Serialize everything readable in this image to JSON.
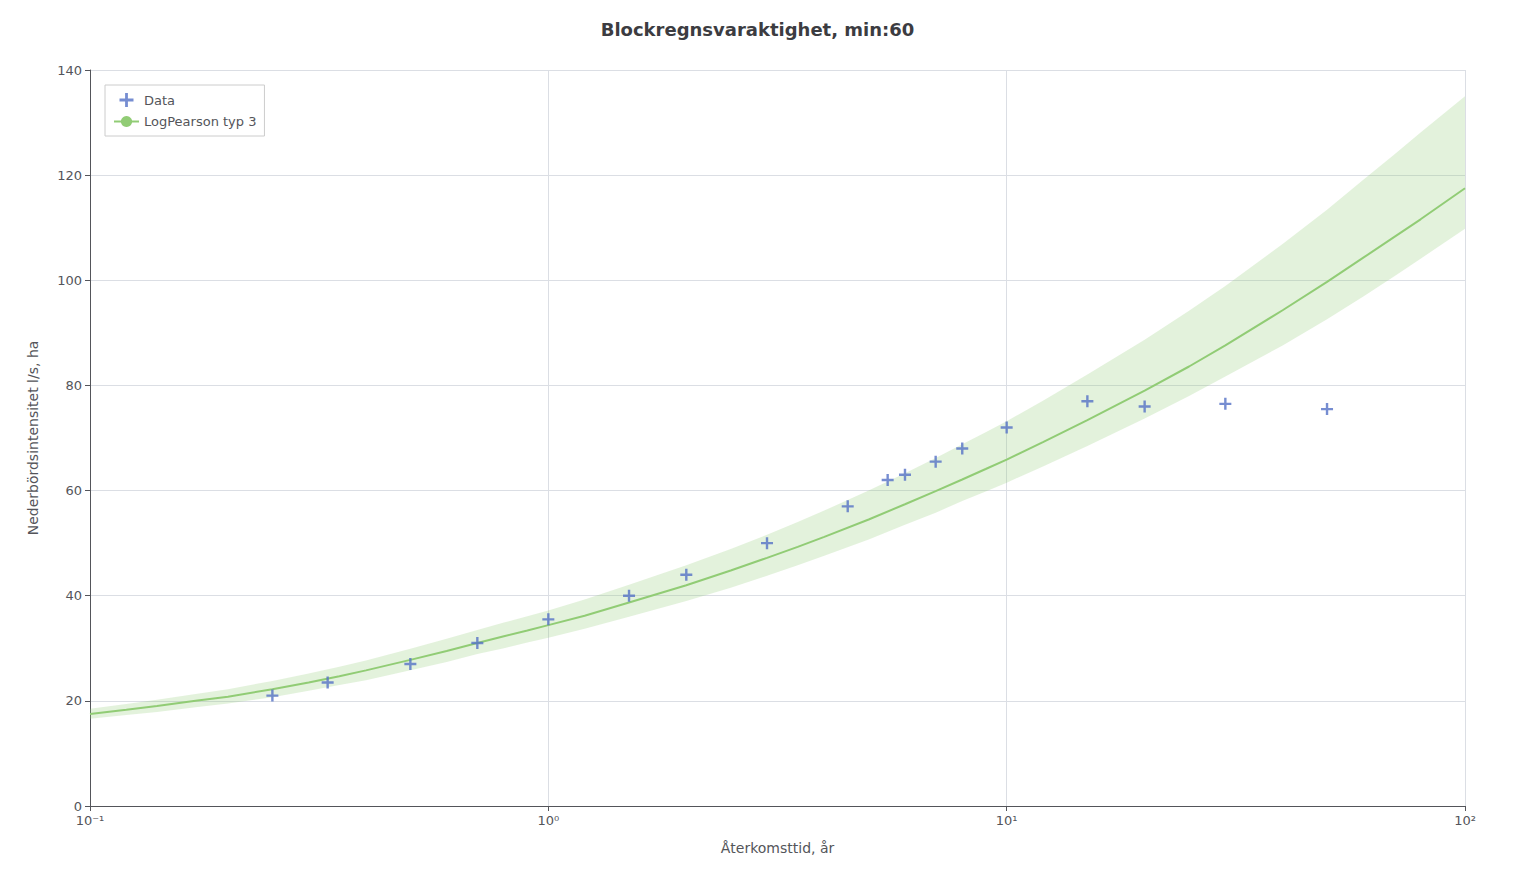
{
  "chart_data": {
    "type": "line",
    "title": "Blockregnsvaraktighet, min:60",
    "xlabel": "Återkomsttid, år",
    "ylabel": "Nederbördsintensitet l/s, ha",
    "log": "x",
    "xlim": [
      0.1,
      100
    ],
    "xticks": [
      {
        "value": 0.1,
        "label": "10⁻¹"
      },
      {
        "value": 1,
        "label": "10⁰"
      },
      {
        "value": 10,
        "label": "10¹"
      },
      {
        "value": 100,
        "label": "10²"
      }
    ],
    "ylim": [
      0,
      140
    ],
    "yticks": [
      0,
      20,
      40,
      60,
      80,
      100,
      120,
      140
    ],
    "grid": true,
    "legend": "upper left",
    "series": [
      {
        "name": "Data",
        "type": "scatter",
        "marker": "+",
        "x": [
          0.25,
          0.33,
          0.5,
          0.7,
          1.0,
          1.5,
          2.0,
          3.0,
          4.5,
          5.5,
          6.0,
          7.0,
          8.0,
          10.0,
          15.0,
          20.0,
          30.0,
          50.0
        ],
        "values": [
          21.0,
          23.5,
          27.0,
          31.0,
          35.5,
          40.0,
          44.0,
          50.0,
          57.0,
          62.0,
          63.0,
          65.5,
          68.0,
          72.0,
          77.0,
          76.0,
          76.5,
          75.5
        ]
      },
      {
        "name": "LogPearson typ 3",
        "type": "line",
        "line_style": "solid",
        "x": [
          0.1,
          0.12,
          0.14,
          0.17,
          0.2,
          0.25,
          0.3,
          0.35,
          0.4,
          0.5,
          0.6,
          0.7,
          0.8,
          0.9,
          1.0,
          1.2,
          1.5,
          2.0,
          2.5,
          3.0,
          3.5,
          4.0,
          5.0,
          6.0,
          7.0,
          8.0,
          9.0,
          10.0,
          12.0,
          15.0,
          20.0,
          25.0,
          30.0,
          40.0,
          50.0,
          60.0,
          70.0,
          80.0,
          100.0
        ],
        "values": [
          17.5,
          18.3,
          19.0,
          20.0,
          20.8,
          22.2,
          23.5,
          24.7,
          25.8,
          27.8,
          29.5,
          31.0,
          32.3,
          33.4,
          34.4,
          36.2,
          38.7,
          42.0,
          44.8,
          47.2,
          49.3,
          51.2,
          54.5,
          57.4,
          59.9,
          62.1,
          64.1,
          65.9,
          69.2,
          73.4,
          79.0,
          83.6,
          87.6,
          94.3,
          99.7,
          104.3,
          108.2,
          111.6,
          117.5
        ],
        "upper": [
          18.5,
          19.4,
          20.2,
          21.3,
          22.2,
          23.8,
          25.2,
          26.5,
          27.7,
          29.9,
          31.8,
          33.5,
          34.9,
          36.1,
          37.2,
          39.3,
          42.1,
          45.8,
          48.9,
          51.6,
          54.0,
          56.2,
          60.0,
          63.3,
          66.2,
          68.8,
          71.1,
          73.2,
          77.1,
          82.1,
          88.7,
          94.2,
          98.9,
          106.9,
          113.4,
          119.1,
          123.9,
          128.1,
          135.0
        ],
        "lower": [
          16.6,
          17.3,
          17.9,
          18.8,
          19.5,
          20.7,
          21.9,
          23.0,
          23.9,
          25.8,
          27.4,
          28.9,
          30.0,
          31.1,
          32.0,
          33.7,
          36.0,
          39.0,
          41.5,
          43.8,
          45.8,
          47.6,
          50.7,
          53.5,
          55.8,
          58.0,
          59.8,
          61.5,
          64.6,
          68.5,
          73.7,
          78.0,
          81.7,
          87.6,
          92.6,
          96.9,
          100.7,
          104.1,
          109.8
        ]
      }
    ]
  }
}
